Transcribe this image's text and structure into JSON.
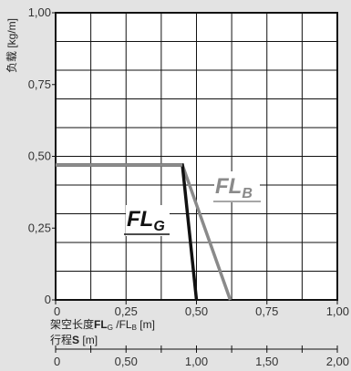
{
  "chart_data": {
    "type": "line",
    "ylabel": "负载 [kg/m]",
    "ylim": [
      0,
      1.0
    ],
    "xlim": [
      0,
      2.0
    ],
    "y_ticks": [
      "0",
      "0,25",
      "0,50",
      "0,75",
      "1,00"
    ],
    "y_tick_values": [
      0,
      0.25,
      0.5,
      0.75,
      1.0
    ],
    "x_ticks": [
      "0",
      "0,25",
      "0,50",
      "0,75",
      "1,00"
    ],
    "x_tick_values": [
      0,
      0.25,
      0.5,
      0.75,
      1.0
    ],
    "xlabel_parts": {
      "prefix": "架空长度",
      "fl_g": "FL",
      "fl_g_sub": "G",
      "sep": " /FL",
      "fl_b_sub": "B",
      "unit": " [m]"
    },
    "stroke_label": {
      "prefix": "行程",
      "bold": "S",
      "unit": " [m]"
    },
    "stroke_ticks": [
      "0",
      "0,50",
      "1,00",
      "1,50",
      "2,00"
    ],
    "stroke_tick_values": [
      0,
      0.5,
      1.0,
      1.5,
      2.0
    ],
    "grid": true,
    "series": [
      {
        "name": "FL_G",
        "label_main": "FL",
        "label_sub": "G",
        "color": "#111111",
        "x": [
          0,
          0.45,
          0.5
        ],
        "y": [
          0.47,
          0.47,
          0
        ]
      },
      {
        "name": "FL_B",
        "label_main": "FL",
        "label_sub": "B",
        "color": "#8a8a8a",
        "x": [
          0,
          0.45,
          0.62
        ],
        "y": [
          0.47,
          0.47,
          0
        ]
      }
    ]
  }
}
